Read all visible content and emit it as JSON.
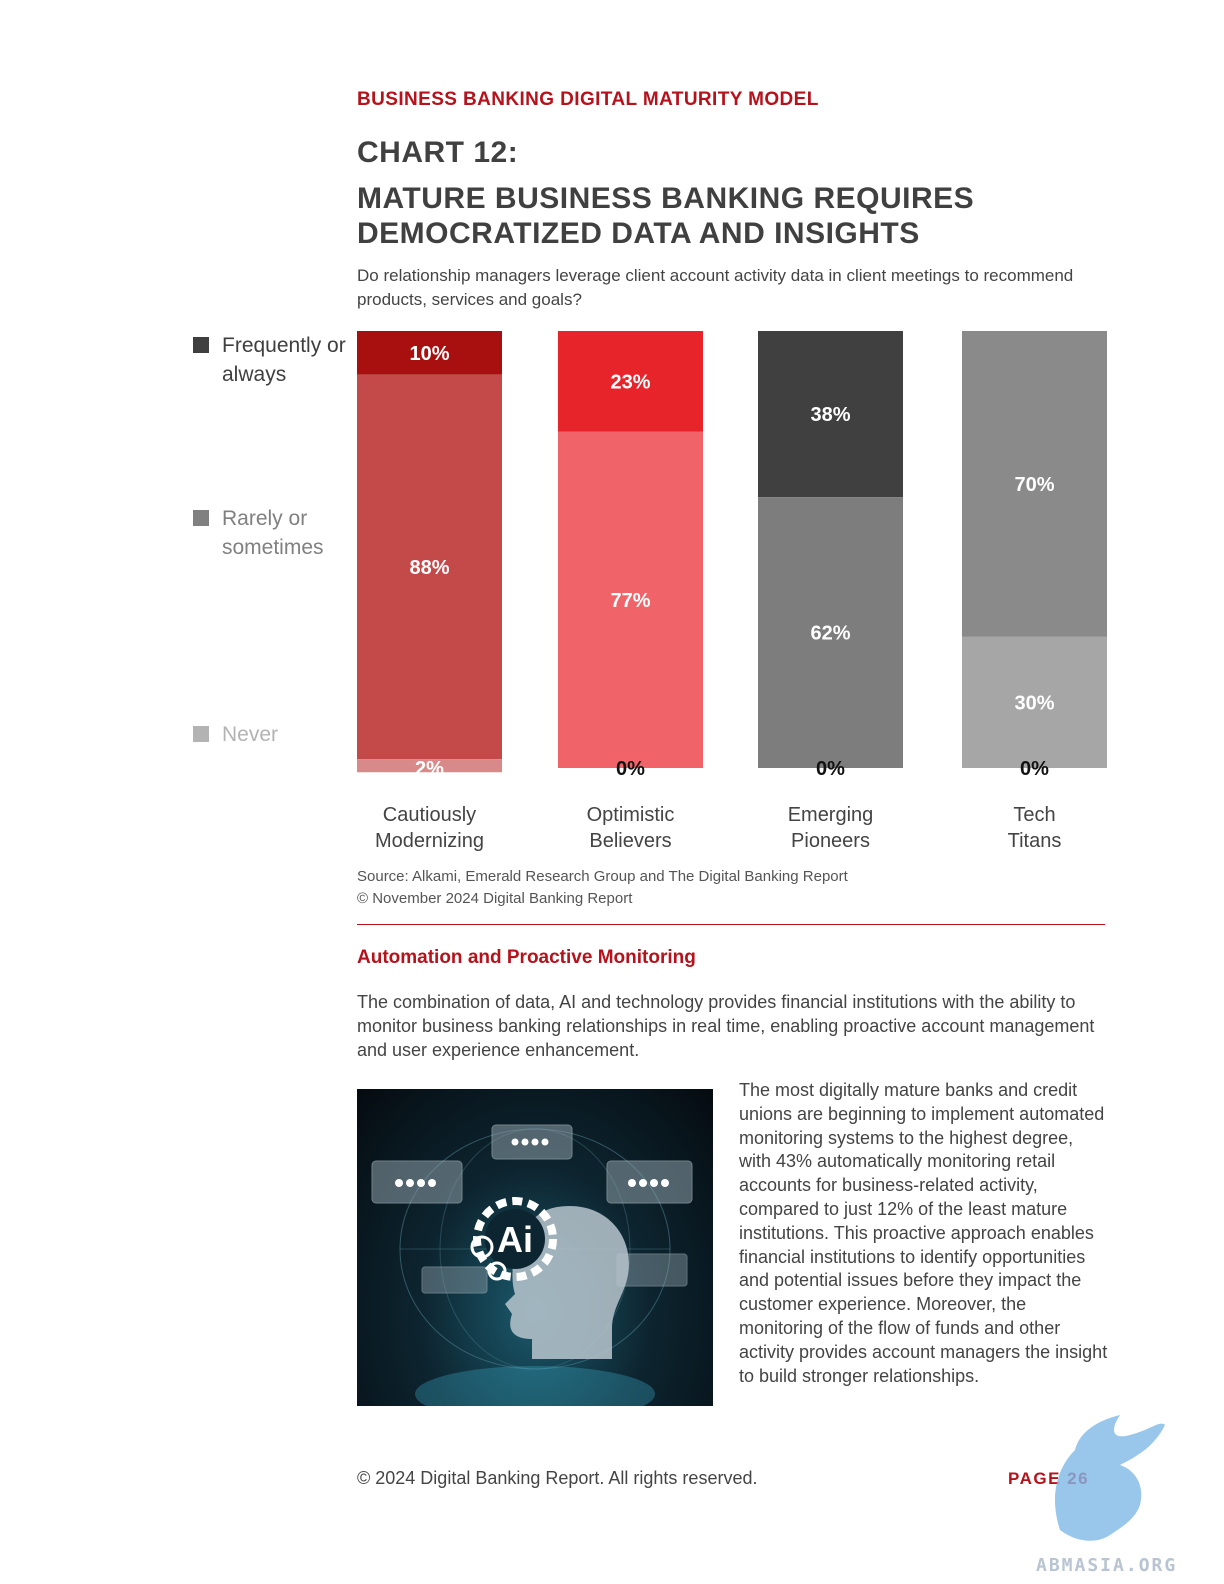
{
  "header": {
    "section_label": "BUSINESS BANKING DIGITAL MATURITY MODEL",
    "chart_number": "CHART 12:",
    "chart_title": "MATURE BUSINESS BANKING REQUIRES DEMOCRATIZED DATA AND INSIGHTS",
    "question": "Do relationship managers leverage client account activity data in client meetings to recommend products, services and goals?"
  },
  "legend": [
    {
      "label": "Frequently or always",
      "color": "#3f3f3f"
    },
    {
      "label": "Rarely or sometimes",
      "color": "#808080"
    },
    {
      "label": "Never",
      "color": "#b3b3b3"
    }
  ],
  "chart_data": {
    "type": "bar",
    "stacked": true,
    "normalized": "percent",
    "categories": [
      "Cautiously Modernizing",
      "Optimistic Believers",
      "Emerging Pioneers",
      "Tech Titans"
    ],
    "series": [
      {
        "name": "Frequently or always",
        "values": [
          10,
          23,
          38,
          70
        ],
        "colors": [
          "#a80f0f",
          "#e8242b",
          "#404040",
          "#8a8a8a"
        ]
      },
      {
        "name": "Rarely or sometimes",
        "values": [
          88,
          77,
          62,
          30
        ],
        "colors": [
          "#c44a4a",
          "#f06368",
          "#7d7d7d",
          "#a6a6a6"
        ]
      },
      {
        "name": "Never",
        "values": [
          2,
          0,
          0,
          0
        ],
        "colors": [
          "#d88a8a",
          "#f59ca0",
          "#a8a8a8",
          "#c2c2c2"
        ]
      }
    ],
    "value_labels": [
      [
        "10%",
        "88%",
        "2%"
      ],
      [
        "23%",
        "77%",
        "0%"
      ],
      [
        "38%",
        "62%",
        "0%"
      ],
      [
        "70%",
        "30%",
        "0%"
      ]
    ],
    "category_lines": [
      [
        "Cautiously",
        "Modernizing"
      ],
      [
        "Optimistic",
        "Believers"
      ],
      [
        "Emerging",
        "Pioneers"
      ],
      [
        "Tech",
        "Titans"
      ]
    ],
    "ylim": [
      0,
      100
    ]
  },
  "source": {
    "line1": "Source: Alkami, Emerald Research Group and The Digital Banking Report",
    "line2": "© November 2024 Digital Banking Report"
  },
  "section": {
    "heading": "Automation and Proactive Monitoring",
    "paragraph": "The combination of data, AI and technology provides financial institutions with the ability to monitor business banking relationships in real time, enabling proactive account management and user experience enhancement.",
    "side_paragraph": "The most digitally mature banks and credit unions are beginning to implement automated monitoring systems to the highest degree, with 43% automatically monitoring retail accounts for business-related activity, compared to just 12% of the least mature institutions. This proactive approach enables financial institutions to identify opportunities and potential issues before they impact the customer experience. Moreover, the monitoring of the flow of funds and other activity provides account managers the insight to build stronger relationships.",
    "image_text": "Ai"
  },
  "footer": {
    "copyright": "© 2024 Digital Banking Report. All rights reserved.",
    "page": "PAGE 26",
    "watermark": "ABMASIA.ORG"
  }
}
